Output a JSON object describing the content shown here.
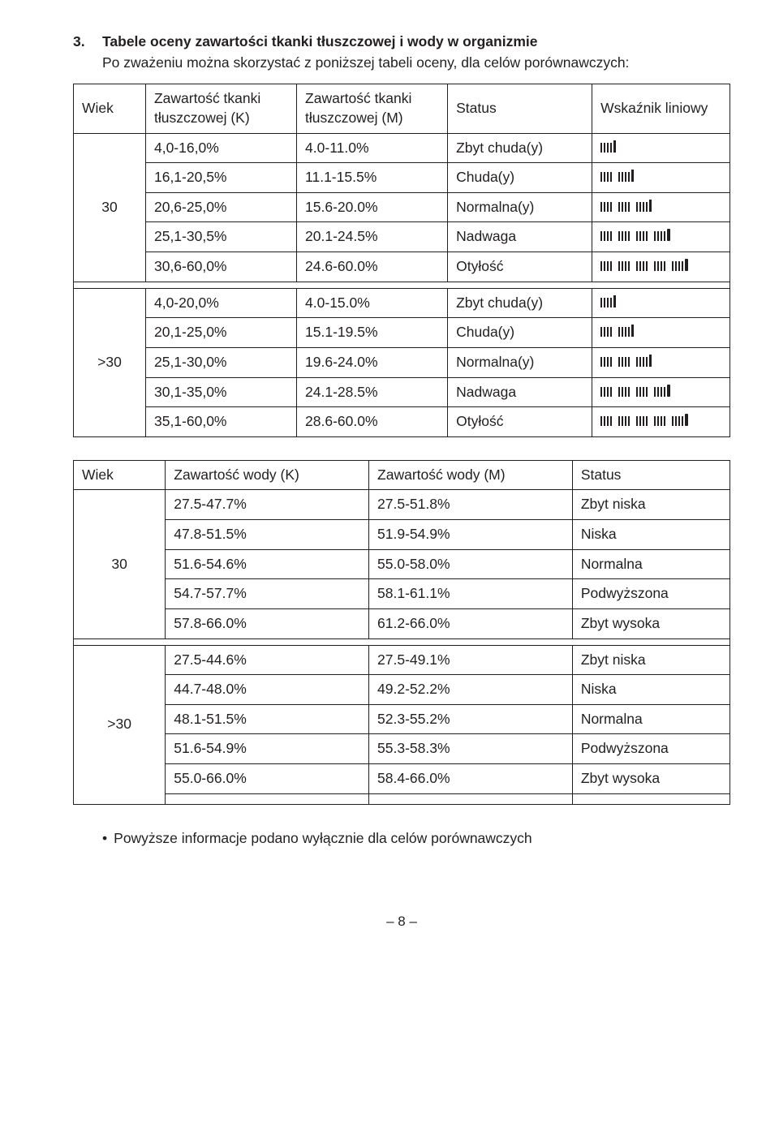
{
  "section": {
    "number": "3.",
    "title": "Tabele oceny zawartości tkanki tłuszczowej i wody w organizmie",
    "intro": "Po zważeniu można skorzystać z poniższej tabeli oceny, dla celów porównawczych:"
  },
  "fat_table": {
    "headers": {
      "age": "Wiek",
      "fat_k": "Zawartość tkanki tłuszczowej (K)",
      "fat_m": "Zawartość tkanki tłuszczowej (M)",
      "status": "Status",
      "indicator": "Wskaźnik liniowy"
    },
    "groups": [
      {
        "age": "30",
        "rows": [
          {
            "k": "4,0-16,0%",
            "m": "4.0-11.0%",
            "status": "Zbyt chuda(y)",
            "level": 1
          },
          {
            "k": "16,1-20,5%",
            "m": "11.1-15.5%",
            "status": "Chuda(y)",
            "level": 2
          },
          {
            "k": "20,6-25,0%",
            "m": "15.6-20.0%",
            "status": "Normalna(y)",
            "level": 3
          },
          {
            "k": "25,1-30,5%",
            "m": "20.1-24.5%",
            "status": "Nadwaga",
            "level": 4
          },
          {
            "k": "30,6-60,0%",
            "m": "24.6-60.0%",
            "status": "Otyłość",
            "level": 5
          }
        ]
      },
      {
        "age": ">30",
        "rows": [
          {
            "k": "4,0-20,0%",
            "m": "4.0-15.0%",
            "status": "Zbyt chuda(y)",
            "level": 1
          },
          {
            "k": "20,1-25,0%",
            "m": "15.1-19.5%",
            "status": "Chuda(y)",
            "level": 2
          },
          {
            "k": "25,1-30,0%",
            "m": "19.6-24.0%",
            "status": "Normalna(y)",
            "level": 3
          },
          {
            "k": "30,1-35,0%",
            "m": "24.1-28.5%",
            "status": "Nadwaga",
            "level": 4
          },
          {
            "k": "35,1-60,0%",
            "m": "28.6-60.0%",
            "status": "Otyłość",
            "level": 5
          }
        ]
      }
    ]
  },
  "water_table": {
    "headers": {
      "age": "Wiek",
      "water_k": "Zawartość wody (K)",
      "water_m": "Zawartość wody (M)",
      "status": "Status"
    },
    "groups": [
      {
        "age": "30",
        "rows": [
          {
            "k": "27.5-47.7%",
            "m": "27.5-51.8%",
            "status": "Zbyt niska"
          },
          {
            "k": "47.8-51.5%",
            "m": "51.9-54.9%",
            "status": "Niska"
          },
          {
            "k": "51.6-54.6%",
            "m": "55.0-58.0%",
            "status": "Normalna"
          },
          {
            "k": "54.7-57.7%",
            "m": "58.1-61.1%",
            "status": "Podwyższona"
          },
          {
            "k": "57.8-66.0%",
            "m": "61.2-66.0%",
            "status": "Zbyt wysoka"
          }
        ]
      },
      {
        "age": ">30",
        "rows": [
          {
            "k": "27.5-44.6%",
            "m": "27.5-49.1%",
            "status": "Zbyt niska"
          },
          {
            "k": "44.7-48.0%",
            "m": "49.2-52.2%",
            "status": "Niska"
          },
          {
            "k": "48.1-51.5%",
            "m": "52.3-55.2%",
            "status": "Normalna"
          },
          {
            "k": "51.6-54.9%",
            "m": "55.3-58.3%",
            "status": "Podwyższona"
          },
          {
            "k": "55.0-66.0%",
            "m": "58.4-66.0%",
            "status": "Zbyt wysoka"
          },
          {
            "k": "",
            "m": "",
            "status": ""
          }
        ]
      }
    ]
  },
  "footer_note": "Powyższe informacje podano wyłącznie dla celów porównawczych",
  "page_number": "– 8 –",
  "colors": {
    "text": "#231f20",
    "border": "#231f20",
    "background": "#ffffff"
  }
}
